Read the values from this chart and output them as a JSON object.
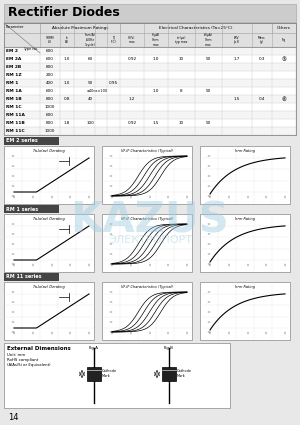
{
  "title": "Rectifier Diodes",
  "page_number": "14",
  "bg_color": "#e8e8e8",
  "title_bar_color": "#cccccc",
  "table_header_bg": "#e0e0e0",
  "table_rows": [
    [
      "EM 2",
      "600",
      "",
      "",
      "",
      "",
      "",
      "",
      "",
      "",
      "",
      "",
      ""
    ],
    [
      "EM 2A",
      "600",
      "1.0",
      "60",
      "",
      "",
      "0.92",
      "1.0",
      "10",
      "50",
      "1.7",
      "0.3",
      "5"
    ],
    [
      "EM 2B",
      "800",
      "",
      "",
      "",
      "",
      "",
      "",
      "",
      "",
      "",
      "",
      ""
    ],
    [
      "RM 1Z",
      "200",
      "",
      "",
      "",
      "",
      "",
      "",
      "",
      "",
      "",
      "",
      ""
    ],
    [
      "RM 1",
      "400",
      "1.0",
      "50",
      "",
      "0.95",
      "",
      "",
      "",
      "",
      "",
      "",
      ""
    ],
    [
      "RM 1A",
      "600",
      "",
      "",
      "≤40ns×100",
      "",
      "",
      "1.0",
      "8",
      "50",
      "",
      "",
      ""
    ],
    [
      "RM 1B",
      "800",
      "0.8",
      "40",
      "",
      "",
      "1.2",
      "",
      "",
      "",
      "1.5",
      "0.4",
      "6"
    ],
    [
      "RM 1C",
      "1000",
      "",
      "",
      "",
      "",
      "",
      "",
      "",
      "",
      "",
      "",
      ""
    ],
    [
      "RM 11A",
      "600",
      "",
      "",
      "",
      "",
      "",
      "",
      "",
      "",
      "",
      "",
      ""
    ],
    [
      "RM 11B",
      "800",
      "1.8",
      "100",
      "",
      "",
      "0.92",
      "1.5",
      "10",
      "50",
      "",
      "",
      ""
    ],
    [
      "RM 11C",
      "1000",
      "",
      "",
      "",
      "",
      "",
      "",
      "",
      "",
      "",
      "",
      ""
    ]
  ],
  "series": [
    {
      "name": "EM 2 series"
    },
    {
      "name": "RM 1 series"
    },
    {
      "name": "RM 11 series"
    }
  ],
  "graph_titles": [
    "Ta-Io(av) Derating",
    "VF-IF Characteristics (Typical)",
    "Irrm Rating"
  ],
  "series_label_bg": "#444444",
  "watermark1": "KAZUS",
  "watermark2": "ЭЛЕКТРОПОРТ",
  "watermark_color": "#a0cce0"
}
